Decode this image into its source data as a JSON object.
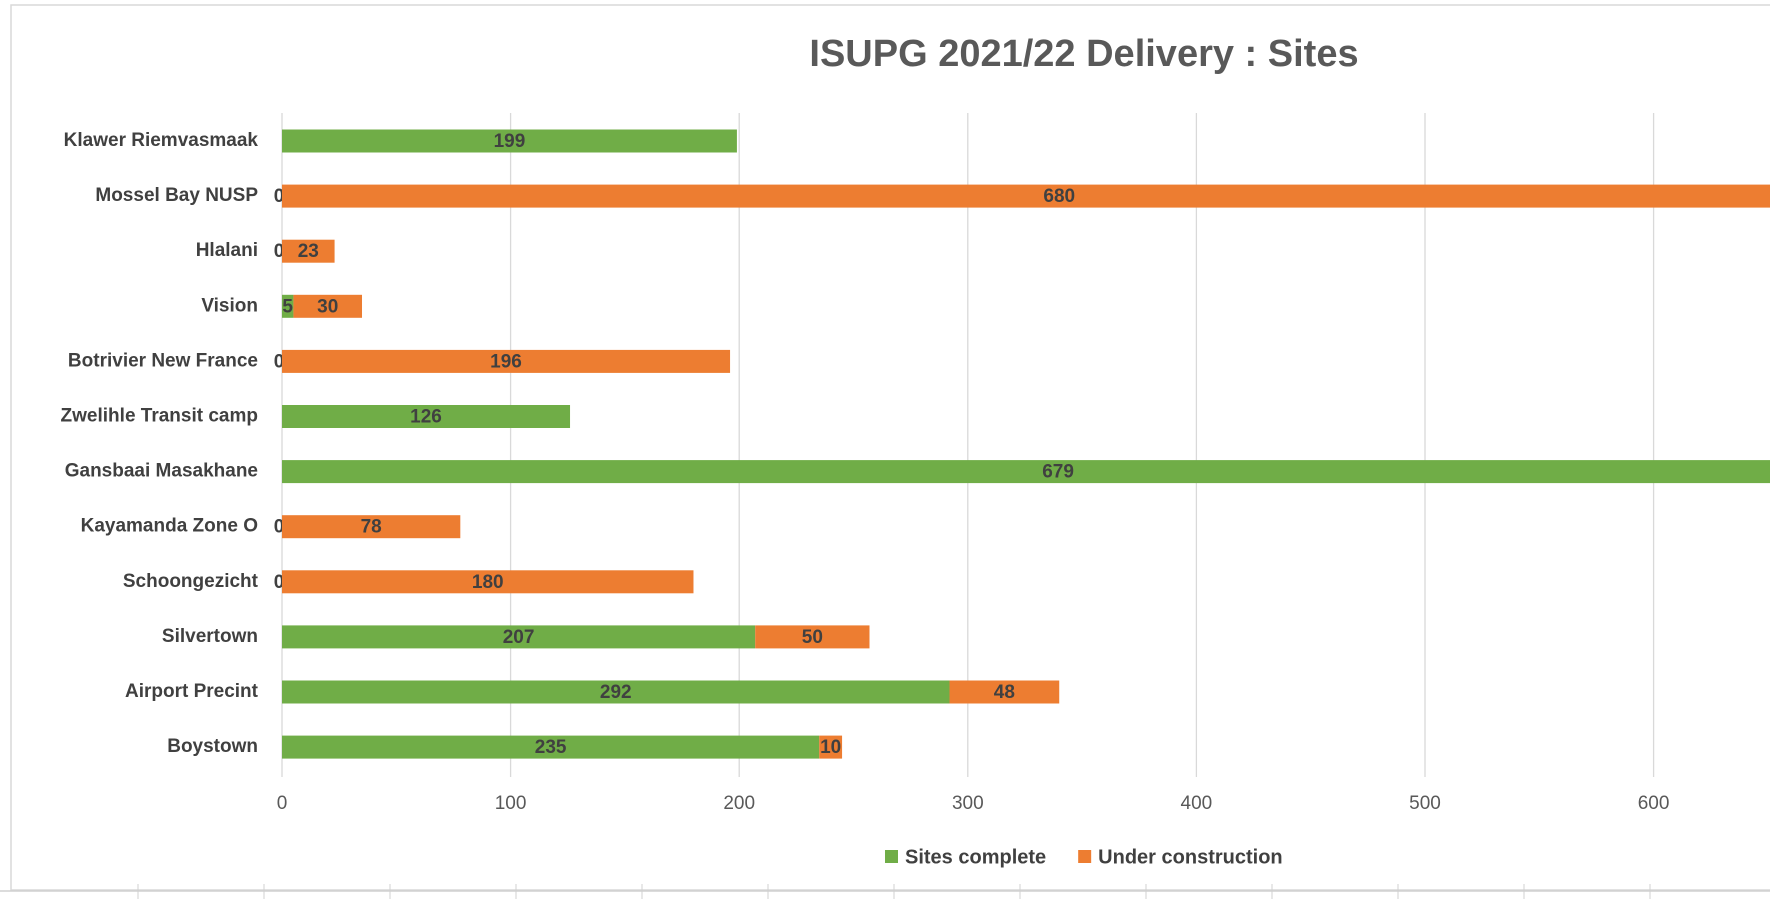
{
  "chart_data": {
    "type": "stacked_barh",
    "title": "ISUPG 2021/22 Delivery : Sites",
    "categories": [
      "Klawer Riemvasmaak",
      "Mossel Bay NUSP",
      "Hlalani",
      "Vision",
      "Botrivier New France",
      "Zwelihle Transit camp",
      "Gansbaai Masakhane",
      "Kayamanda Zone O",
      "Schoongezicht",
      "Silvertown",
      "Airport Precint",
      "Boystown"
    ],
    "series": [
      {
        "name": "Sites complete",
        "color": "#70ad47",
        "values": [
          199,
          0,
          0,
          5,
          0,
          126,
          679,
          0,
          0,
          207,
          292,
          235
        ]
      },
      {
        "name": "Under construction",
        "color": "#ed7d31",
        "values": [
          null,
          680,
          23,
          30,
          196,
          null,
          null,
          78,
          180,
          50,
          48,
          10
        ]
      }
    ],
    "xlim": [
      0,
      700
    ],
    "xticks": [
      0,
      100,
      200,
      300,
      400,
      500,
      600
    ],
    "grid": true,
    "legend": "bottom"
  }
}
